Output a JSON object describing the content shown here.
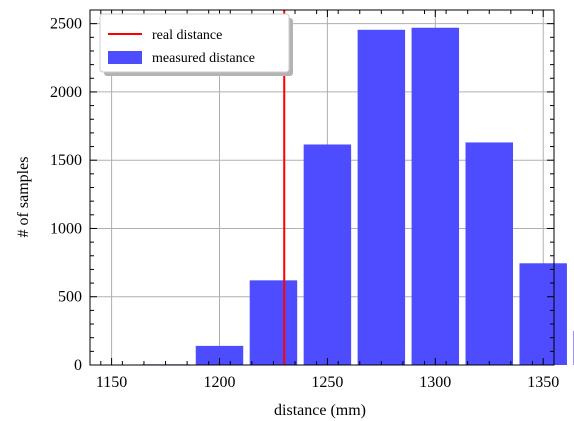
{
  "chart_data": {
    "type": "bar",
    "title": "",
    "xlabel": "distance (mm)",
    "ylabel": "# of samples",
    "xlim": [
      1140,
      1355
    ],
    "ylim": [
      0,
      2600
    ],
    "grid": true,
    "legend_position": "top-left",
    "xticks": [
      1150,
      1200,
      1250,
      1300,
      1350
    ],
    "yticks": [
      0,
      500,
      1000,
      1500,
      2000,
      2500
    ],
    "bin_width": 25,
    "bar_fraction": 0.88,
    "bars": [
      {
        "center": 1175,
        "value": 5
      },
      {
        "center": 1200,
        "value": 140
      },
      {
        "center": 1225,
        "value": 620
      },
      {
        "center": 1250,
        "value": 1615
      },
      {
        "center": 1275,
        "value": 2455
      },
      {
        "center": 1300,
        "value": 2470
      },
      {
        "center": 1325,
        "value": 1630
      },
      {
        "center": 1350,
        "value": 745
      },
      {
        "center": 1375,
        "value": 250
      },
      {
        "center": 1400,
        "value": 40
      }
    ],
    "reference_line": {
      "name": "real distance",
      "x": 1230,
      "color": "#ff0000"
    },
    "bar_series": {
      "name": "measured distance",
      "color": "#4d4dff"
    }
  }
}
